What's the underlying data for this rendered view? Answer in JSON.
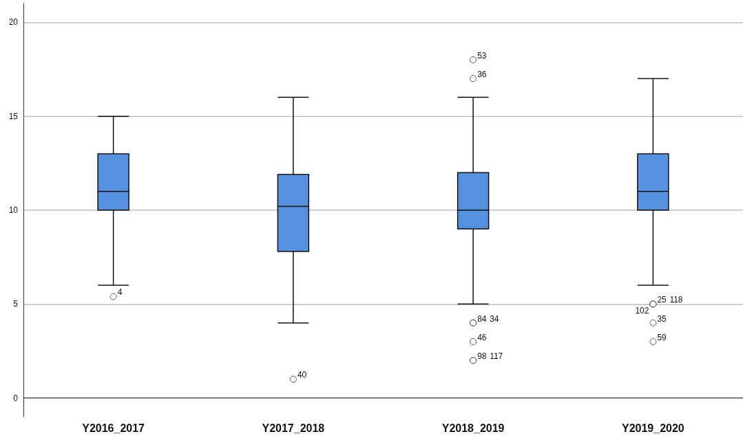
{
  "chart_data": {
    "type": "box",
    "categories": [
      "Y2016_2017",
      "Y2017_2018",
      "Y2018_2019",
      "Y2019_2020"
    ],
    "boxes": [
      {
        "low": 6,
        "q1": 10,
        "median": 11,
        "q3": 13,
        "high": 15
      },
      {
        "low": 4,
        "q1": 7.8,
        "median": 10.2,
        "q3": 11.9,
        "high": 16
      },
      {
        "low": 5,
        "q1": 9,
        "median": 10,
        "q3": 12,
        "high": 16
      },
      {
        "low": 6,
        "q1": 10,
        "median": 11,
        "q3": 13,
        "high": 17
      }
    ],
    "series": [
      {
        "type": "scatter",
        "color": "#ffffff",
        "x": [
          "Y2016_2017",
          "Y2017_2018",
          "Y2018_2019",
          "Y2018_2019",
          "Y2018_2019",
          "Y2018_2019",
          "Y2018_2019",
          "Y2018_2019",
          "Y2018_2019",
          "Y2019_2020",
          "Y2019_2020",
          "Y2019_2020",
          "Y2019_2020",
          "Y2019_2020"
        ],
        "values": [
          5.4,
          1,
          18,
          17,
          4,
          4,
          3,
          2,
          2,
          5,
          5,
          5,
          4,
          3
        ]
      }
    ],
    "color": "#5591df",
    "ylim": [
      -1,
      21
    ],
    "yticks": [
      0,
      5,
      10,
      15,
      20
    ],
    "grid": "y",
    "marker": "circle",
    "annotations": [
      {
        "text": "4",
        "x": "Y2016_2017",
        "y": 5.4
      },
      {
        "text": "40",
        "x": "Y2017_2018",
        "y": 1
      },
      {
        "text": "53",
        "x": "Y2018_2019",
        "y": 18
      },
      {
        "text": "36",
        "x": "Y2018_2019",
        "y": 17
      },
      {
        "text": "84",
        "x": "Y2018_2019",
        "y": 4
      },
      {
        "text": "34",
        "x": "Y2018_2019",
        "y": 4
      },
      {
        "text": "46",
        "x": "Y2018_2019",
        "y": 3
      },
      {
        "text": "98",
        "x": "Y2018_2019",
        "y": 2
      },
      {
        "text": "117",
        "x": "Y2018_2019",
        "y": 2
      },
      {
        "text": "25",
        "x": "Y2019_2020",
        "y": 5
      },
      {
        "text": "118",
        "x": "Y2019_2020",
        "y": 5
      },
      {
        "text": "102",
        "x": "Y2019_2020",
        "y": 5
      },
      {
        "text": "35",
        "x": "Y2019_2020",
        "y": 4
      },
      {
        "text": "59",
        "x": "Y2019_2020",
        "y": 3
      }
    ]
  }
}
